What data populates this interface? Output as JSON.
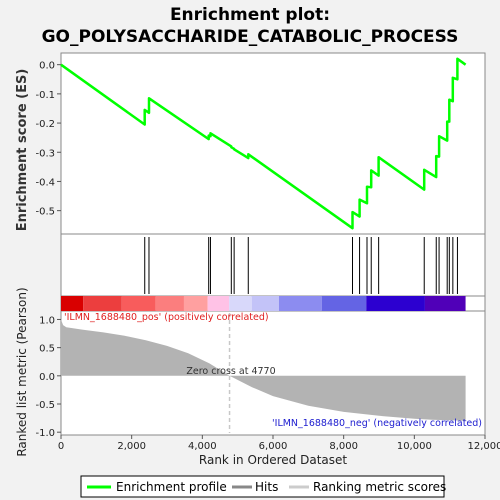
{
  "title": {
    "line1": "Enrichment plot:",
    "line2": "GO_POLYSACCHARIDE_CATABOLIC_PROCESS"
  },
  "colors": {
    "profile": "#00ff00",
    "hits": "#000000",
    "metric_fill": "#b3b3b3",
    "pos_label": "#e02020",
    "neg_label": "#2020d0"
  },
  "chart_data": [
    {
      "type": "line",
      "panel": "enrichment-score",
      "ylabel": "Enrichment score (ES)",
      "xlim": [
        0,
        12000
      ],
      "ylim": [
        -0.58,
        0.04
      ],
      "yticks": [
        0.0,
        -0.1,
        -0.2,
        -0.3,
        -0.4,
        -0.5
      ],
      "ytick_labels": [
        "0.0",
        "-0.1",
        "-0.2",
        "-0.3",
        "-0.4",
        "-0.5"
      ],
      "grid": false,
      "series": [
        {
          "name": "Enrichment profile",
          "x": [
            0,
            2370,
            2370,
            2490,
            2490,
            4180,
            4180,
            4230,
            4230,
            4820,
            4820,
            4900,
            4900,
            5300,
            5300,
            8250,
            8250,
            8450,
            8450,
            8660,
            8660,
            8780,
            8780,
            8990,
            8990,
            10280,
            10280,
            10620,
            10620,
            10700,
            10700,
            10930,
            10930,
            10990,
            10990,
            11090,
            11090,
            11220,
            11220,
            11450
          ],
          "y": [
            0.0,
            -0.205,
            -0.155,
            -0.165,
            -0.115,
            -0.255,
            -0.243,
            -0.245,
            -0.235,
            -0.28,
            -0.283,
            -0.288,
            -0.29,
            -0.32,
            -0.307,
            -0.56,
            -0.505,
            -0.52,
            -0.462,
            -0.475,
            -0.418,
            -0.42,
            -0.362,
            -0.38,
            -0.317,
            -0.428,
            -0.36,
            -0.385,
            -0.313,
            -0.315,
            -0.245,
            -0.26,
            -0.195,
            -0.195,
            -0.12,
            -0.125,
            -0.045,
            -0.05,
            0.02,
            0.0
          ]
        }
      ]
    },
    {
      "type": "scatter",
      "panel": "hits",
      "series": [
        {
          "name": "Hits",
          "x": [
            2370,
            2490,
            4180,
            4230,
            4820,
            4900,
            5300,
            8250,
            8450,
            8660,
            8780,
            8990,
            10280,
            10620,
            10700,
            10930,
            10990,
            11090,
            11220
          ]
        }
      ]
    },
    {
      "type": "heatmap",
      "panel": "ranking-colorbar",
      "segments": [
        {
          "x0": 0,
          "x1": 630,
          "color": "#d90000"
        },
        {
          "x0": 630,
          "x1": 1720,
          "color": "#ec3e3e"
        },
        {
          "x0": 1720,
          "x1": 2680,
          "color": "#f85c5c"
        },
        {
          "x0": 2680,
          "x1": 3480,
          "color": "#fb7e7e"
        },
        {
          "x0": 3480,
          "x1": 4150,
          "color": "#ffa0a0"
        },
        {
          "x0": 4150,
          "x1": 4760,
          "color": "#ffc2e6"
        },
        {
          "x0": 4760,
          "x1": 5400,
          "color": "#d8d8fa"
        },
        {
          "x0": 5400,
          "x1": 6170,
          "color": "#c3c3f8"
        },
        {
          "x0": 6170,
          "x1": 7380,
          "color": "#8c8cf0"
        },
        {
          "x0": 7380,
          "x1": 8640,
          "color": "#6464e4"
        },
        {
          "x0": 8640,
          "x1": 10300,
          "color": "#2c00d0"
        },
        {
          "x0": 10300,
          "x1": 11450,
          "color": "#5000b8"
        }
      ]
    },
    {
      "type": "area",
      "panel": "ranked-metric",
      "xlabel": "Rank in Ordered Dataset",
      "ylabel": "Ranked list metric (Pearson)",
      "xlim": [
        0,
        12000
      ],
      "ylim": [
        -1.05,
        1.15
      ],
      "yticks": [
        1.0,
        0.5,
        0.0,
        -0.5,
        -1.0
      ],
      "ytick_labels": [
        "1.0",
        "0.5",
        "0.0",
        "-0.5",
        "-1.0"
      ],
      "xticks": [
        0,
        2000,
        4000,
        6000,
        8000,
        10000,
        12000
      ],
      "xtick_labels": [
        "0",
        "2,000",
        "4,000",
        "6,000",
        "8,000",
        "10,000",
        "12,000"
      ],
      "series": [
        {
          "name": "Ranking metric scores",
          "x": [
            0,
            60,
            150,
            600,
            1200,
            1800,
            2400,
            3000,
            3600,
            4200,
            4770,
            5400,
            6000,
            7000,
            8000,
            9000,
            10000,
            10500,
            11000,
            11450
          ],
          "y": [
            1.0,
            0.9,
            0.86,
            0.82,
            0.77,
            0.71,
            0.63,
            0.53,
            0.4,
            0.22,
            0.0,
            -0.2,
            -0.36,
            -0.53,
            -0.64,
            -0.71,
            -0.76,
            -0.78,
            -0.79,
            -0.8
          ]
        }
      ],
      "annotations": {
        "zero_cross": "Zero cross at 4770",
        "zero_cross_x": 4770,
        "pos_label": "'ILMN_1688480_pos' (positively correlated)",
        "neg_label": "'ILMN_1688480_neg' (negatively correlated)"
      }
    }
  ],
  "legend": {
    "placement": "bottom",
    "items": [
      {
        "label": "Enrichment profile",
        "color": "#00ff00"
      },
      {
        "label": "Hits",
        "color": "#888888"
      },
      {
        "label": "Ranking metric scores",
        "color": "#cccccc"
      }
    ]
  }
}
